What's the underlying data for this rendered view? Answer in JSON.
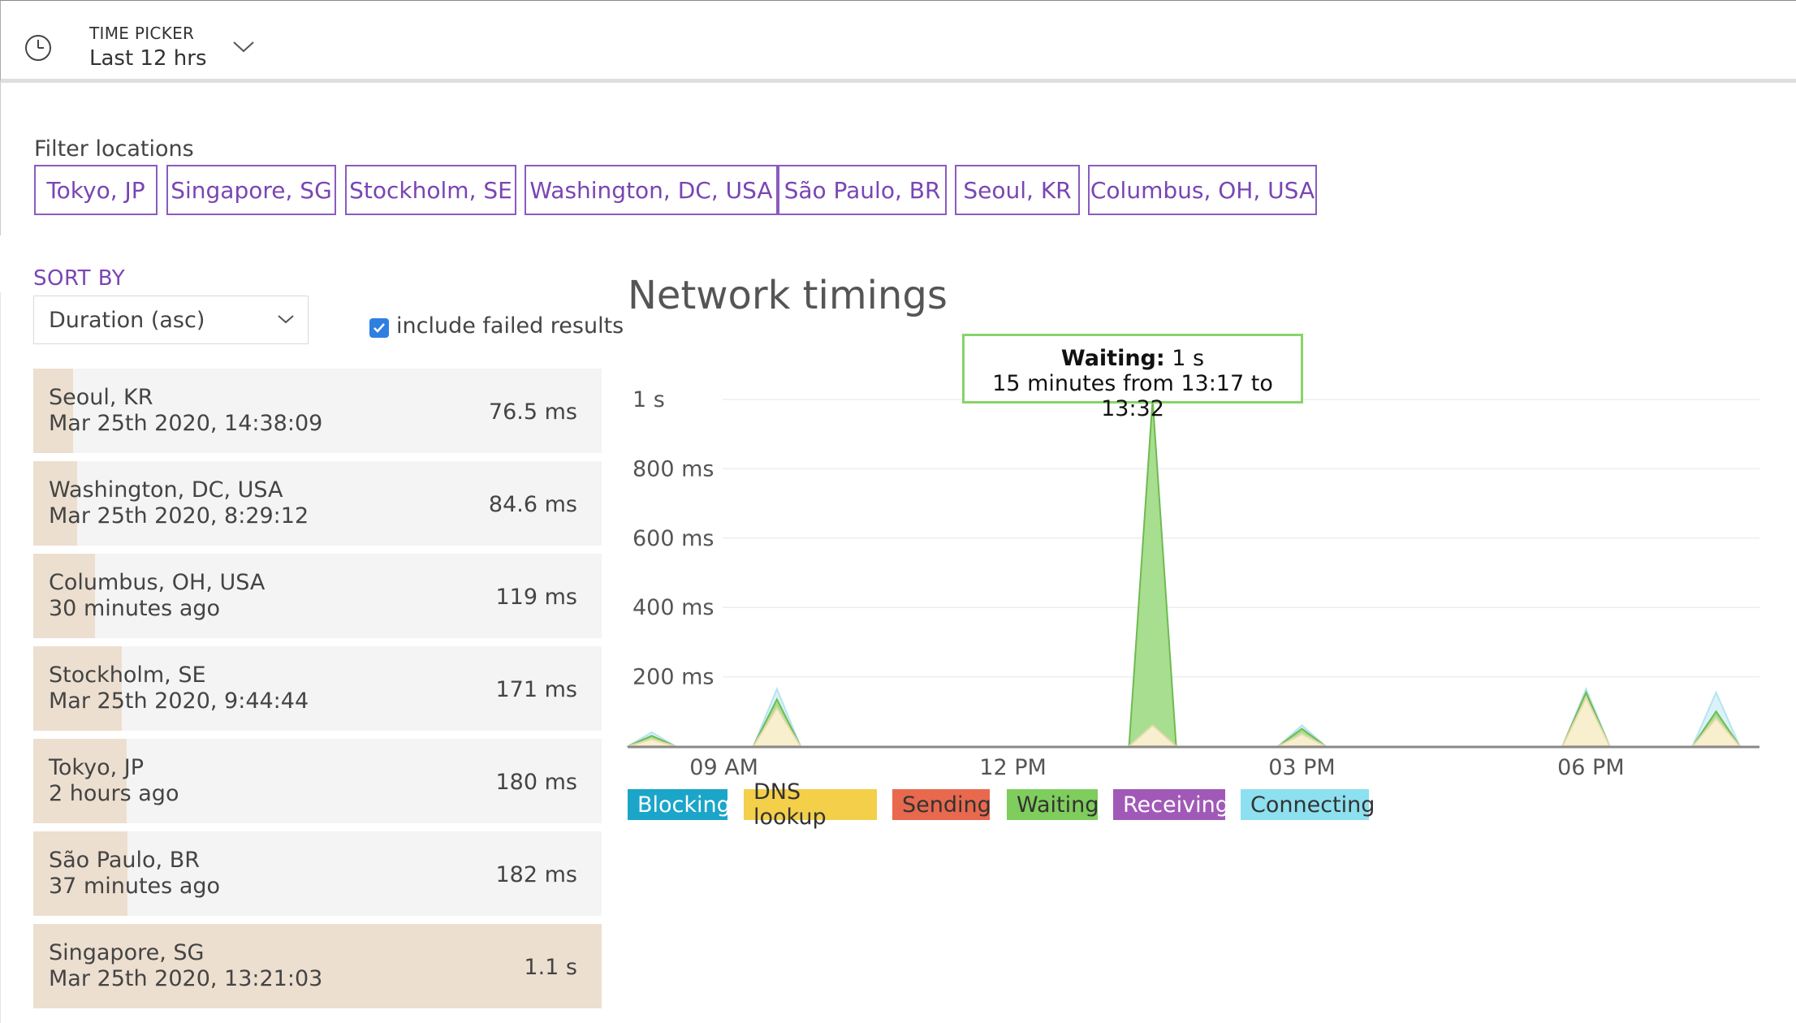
{
  "time_picker": {
    "label": "TIME PICKER",
    "value": "Last 12 hrs"
  },
  "filter": {
    "title": "Filter locations",
    "locations": [
      "Tokyo, JP",
      "Singapore, SG",
      "Stockholm, SE",
      "Washington, DC, USA",
      "São Paulo, BR",
      "Seoul, KR",
      "Columbus, OH, USA"
    ]
  },
  "sort": {
    "label": "SORT BY",
    "selected": "Duration (asc)",
    "include_failed_label": "include failed results",
    "include_failed_checked": true
  },
  "results": [
    {
      "location": "Seoul, KR",
      "time": "Mar 25th 2020, 14:38:09",
      "duration": "76.5 ms",
      "fraction": 0.0695
    },
    {
      "location": "Washington, DC, USA",
      "time": "Mar 25th 2020, 8:29:12",
      "duration": "84.6 ms",
      "fraction": 0.0769
    },
    {
      "location": "Columbus, OH, USA",
      "time": "30 minutes ago",
      "duration": "119 ms",
      "fraction": 0.108
    },
    {
      "location": "Stockholm, SE",
      "time": "Mar 25th 2020, 9:44:44",
      "duration": "171 ms",
      "fraction": 0.155
    },
    {
      "location": "Tokyo, JP",
      "time": "2 hours ago",
      "duration": "180 ms",
      "fraction": 0.164
    },
    {
      "location": "São Paulo, BR",
      "time": "37 minutes ago",
      "duration": "182 ms",
      "fraction": 0.165
    },
    {
      "location": "Singapore, SG",
      "time": "Mar 25th 2020, 13:21:03",
      "duration": "1.1 s",
      "fraction": 1.0
    }
  ],
  "chart": {
    "title": "Network timings",
    "tooltip": {
      "series": "Waiting:",
      "value": "1 s",
      "range": "15 minutes from 13:17 to 13:32"
    }
  },
  "colors": {
    "accent": "#7a45b3",
    "blocking": "#1ba5c9",
    "dns": "#f3cf4a",
    "sending": "#e8694e",
    "waiting": "#7fcd5c",
    "receiving": "#a159b8",
    "connecting": "#8de0ef"
  },
  "chart_data": {
    "type": "area",
    "title": "Network timings",
    "x_ticks": [
      "09 AM",
      "12 PM",
      "03 PM",
      "06 PM"
    ],
    "y_ticks": [
      "200 ms",
      "400 ms",
      "600 ms",
      "800 ms",
      "1 s"
    ],
    "ylim_ms": [
      0,
      1000
    ],
    "x_range_hours": [
      8.0,
      19.75
    ],
    "legend": [
      "Blocking",
      "DNS lookup",
      "Sending",
      "Waiting",
      "Receiving",
      "Connecting"
    ],
    "legend_placement": "bottom",
    "series": [
      {
        "name": "Waiting",
        "points": [
          [
            8.25,
            30
          ],
          [
            9.55,
            135
          ],
          [
            13.45,
            1000
          ],
          [
            15.0,
            50
          ],
          [
            17.95,
            155
          ],
          [
            19.3,
            100
          ]
        ]
      },
      {
        "name": "DNS lookup",
        "points": [
          [
            8.25,
            20
          ],
          [
            9.55,
            110
          ],
          [
            13.45,
            60
          ],
          [
            15.0,
            35
          ],
          [
            17.95,
            140
          ],
          [
            19.3,
            80
          ]
        ]
      },
      {
        "name": "Connecting",
        "points": [
          [
            8.25,
            40
          ],
          [
            9.55,
            165
          ],
          [
            13.45,
            0
          ],
          [
            15.0,
            60
          ],
          [
            17.95,
            165
          ],
          [
            19.3,
            155
          ]
        ]
      }
    ]
  }
}
